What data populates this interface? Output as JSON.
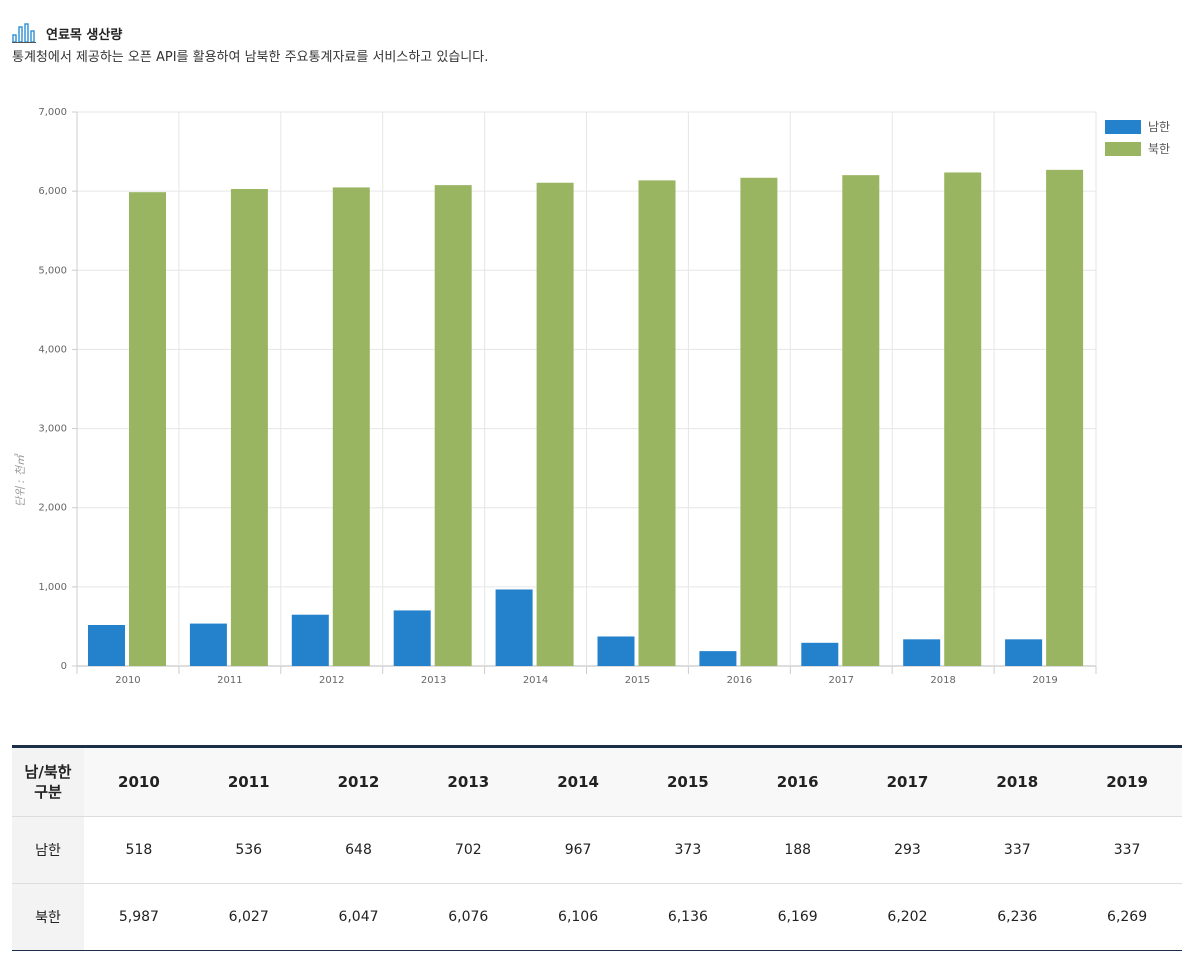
{
  "header": {
    "title": "연료목 생산량",
    "description": "통계청에서 제공하는 오픈 API를 활용하여 남북한 주요통계자료를 서비스하고 있습니다."
  },
  "chart_data": {
    "type": "bar",
    "categories": [
      "2010",
      "2011",
      "2012",
      "2013",
      "2014",
      "2015",
      "2016",
      "2017",
      "2018",
      "2019"
    ],
    "series": [
      {
        "name": "남한",
        "color": "#2481cc",
        "values": [
          518,
          536,
          648,
          702,
          967,
          373,
          188,
          293,
          337,
          337
        ]
      },
      {
        "name": "북한",
        "color": "#9ab561",
        "values": [
          5987,
          6027,
          6047,
          6076,
          6106,
          6136,
          6169,
          6202,
          6236,
          6269
        ]
      }
    ],
    "ylabel": "단위 : 천㎥",
    "ylim": [
      0,
      7000
    ],
    "yticks": [
      "0",
      "1,000",
      "2,000",
      "3,000",
      "4,000",
      "5,000",
      "6,000",
      "7,000"
    ],
    "grid": true,
    "legend": "top-right"
  },
  "table": {
    "header_first": "남/북한\n구분",
    "years": [
      "2010",
      "2011",
      "2012",
      "2013",
      "2014",
      "2015",
      "2016",
      "2017",
      "2018",
      "2019"
    ],
    "rows": [
      {
        "label": "남한",
        "values": [
          "518",
          "536",
          "648",
          "702",
          "967",
          "373",
          "188",
          "293",
          "337",
          "337"
        ]
      },
      {
        "label": "북한",
        "values": [
          "5,987",
          "6,027",
          "6,047",
          "6,076",
          "6,106",
          "6,136",
          "6,169",
          "6,202",
          "6,236",
          "6,269"
        ]
      }
    ]
  }
}
